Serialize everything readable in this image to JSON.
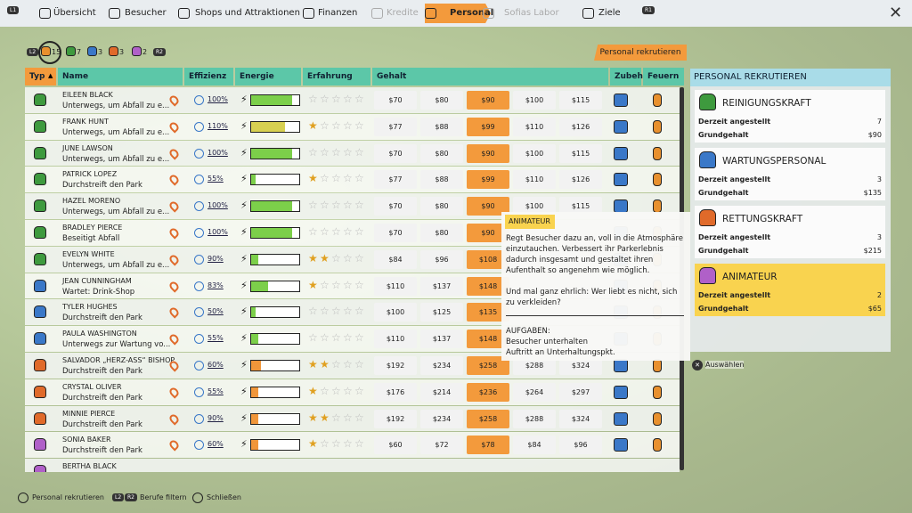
{
  "nav": {
    "left_button": "L1",
    "right_button": "R1",
    "tabs": [
      {
        "label": "Übersicht"
      },
      {
        "label": "Besucher"
      },
      {
        "label": "Shops und Attraktionen"
      },
      {
        "label": "Finanzen"
      },
      {
        "label": "Kredite",
        "disabled": true
      },
      {
        "label": "Personal",
        "active": true
      },
      {
        "label": "Sofias Labor",
        "disabled": true
      },
      {
        "label": "Ziele"
      }
    ]
  },
  "filters": {
    "left_button": "L2",
    "right_button": "R2",
    "counts": [
      "15",
      "7",
      "3",
      "3",
      "2"
    ],
    "colors": [
      "#e8902e",
      "#3e9a3e",
      "#3a78c8",
      "#e06a2a",
      "#b060c8"
    ]
  },
  "recruit_button": "Personal rekrutieren",
  "table": {
    "headers": [
      "Typ",
      "Name",
      "Effizienz",
      "Energie",
      "Erfahrung",
      "Gehalt",
      "Zubehör",
      "Feuern"
    ],
    "rows": [
      {
        "name": "EILEEN BLACK",
        "status": "Unterwegs, um Abfall zu e...",
        "efficiency": "100%",
        "energy": 85,
        "energy_color": "#7ccf4a",
        "stars": 0,
        "salaries": [
          "$70",
          "$80",
          "$90",
          "$100",
          "$115"
        ],
        "selected": 2,
        "color": "#3e9a3e"
      },
      {
        "name": "FRANK HUNT",
        "status": "Unterwegs, um Abfall zu e...",
        "efficiency": "110%",
        "energy": 70,
        "energy_color": "#d8d052",
        "stars": 1,
        "salaries": [
          "$77",
          "$88",
          "$99",
          "$110",
          "$126"
        ],
        "selected": 2,
        "color": "#3e9a3e"
      },
      {
        "name": "JUNE LAWSON",
        "status": "Unterwegs, um Abfall zu e...",
        "efficiency": "100%",
        "energy": 85,
        "energy_color": "#7ccf4a",
        "stars": 0,
        "salaries": [
          "$70",
          "$80",
          "$90",
          "$100",
          "$115"
        ],
        "selected": 2,
        "color": "#3e9a3e"
      },
      {
        "name": "PATRICK LOPEZ",
        "status": "Durchstreift den Park",
        "efficiency": "55%",
        "energy": 10,
        "energy_color": "#7ccf4a",
        "stars": 1,
        "salaries": [
          "$77",
          "$88",
          "$99",
          "$110",
          "$126"
        ],
        "selected": 2,
        "color": "#3e9a3e"
      },
      {
        "name": "HAZEL MORENO",
        "status": "Unterwegs, um Abfall zu e...",
        "efficiency": "100%",
        "energy": 85,
        "energy_color": "#7ccf4a",
        "stars": 0,
        "salaries": [
          "$70",
          "$80",
          "$90",
          "$100",
          "$115"
        ],
        "selected": 2,
        "color": "#3e9a3e"
      },
      {
        "name": "BRADLEY PIERCE",
        "status": "Beseitigt Abfall",
        "efficiency": "100%",
        "energy": 85,
        "energy_color": "#7ccf4a",
        "stars": 0,
        "salaries": [
          "$70",
          "$80",
          "$90"
        ],
        "selected": 2,
        "color": "#3e9a3e"
      },
      {
        "name": "EVELYN WHITE",
        "status": "Unterwegs, um Abfall zu e...",
        "efficiency": "90%",
        "energy": 15,
        "energy_color": "#7ccf4a",
        "stars": 2,
        "salaries": [
          "$84",
          "$96",
          "$108"
        ],
        "selected": 2,
        "color": "#3e9a3e"
      },
      {
        "name": "JEAN CUNNINGHAM",
        "status": "Wartet: Drink-Shop",
        "efficiency": "83%",
        "energy": 35,
        "energy_color": "#7ccf4a",
        "stars": 1,
        "salaries": [
          "$110",
          "$137",
          "$148"
        ],
        "selected": 2,
        "color": "#3a78c8"
      },
      {
        "name": "TYLER HUGHES",
        "status": "Durchstreift den Park",
        "efficiency": "50%",
        "energy": 10,
        "energy_color": "#7ccf4a",
        "stars": 0,
        "salaries": [
          "$100",
          "$125",
          "$135"
        ],
        "selected": 2,
        "color": "#3a78c8"
      },
      {
        "name": "PAULA WASHINGTON",
        "status": "Unterwegs zur Wartung vo...",
        "efficiency": "55%",
        "energy": 15,
        "energy_color": "#7ccf4a",
        "stars": 0,
        "salaries": [
          "$110",
          "$137",
          "$148"
        ],
        "selected": 2,
        "color": "#3a78c8"
      },
      {
        "name": "SALVADOR „HERZ-ASS“ BISHOP",
        "status": "Durchstreift den Park",
        "efficiency": "60%",
        "energy": 20,
        "energy_color": "#f0963a",
        "stars": 2,
        "salaries": [
          "$192",
          "$234",
          "$258",
          "$288",
          "$324"
        ],
        "selected": 2,
        "color": "#e06a2a"
      },
      {
        "name": "CRYSTAL OLIVER",
        "status": "Durchstreift den Park",
        "efficiency": "55%",
        "energy": 15,
        "energy_color": "#f0963a",
        "stars": 1,
        "salaries": [
          "$176",
          "$214",
          "$236",
          "$264",
          "$297"
        ],
        "selected": 2,
        "color": "#e06a2a"
      },
      {
        "name": "MINNIE PIERCE",
        "status": "Durchstreift den Park",
        "efficiency": "90%",
        "energy": 15,
        "energy_color": "#f0963a",
        "stars": 2,
        "salaries": [
          "$192",
          "$234",
          "$258",
          "$288",
          "$324"
        ],
        "selected": 2,
        "color": "#e06a2a"
      },
      {
        "name": "SONIA BAKER",
        "status": "Durchstreift den Park",
        "efficiency": "60%",
        "energy": 15,
        "energy_color": "#f0963a",
        "stars": 1,
        "salaries": [
          "$60",
          "$72",
          "$78",
          "$84",
          "$96"
        ],
        "selected": 2,
        "color": "#b060c8"
      },
      {
        "name": "BERTHA BLACK",
        "color": "#b060c8"
      }
    ]
  },
  "tooltip": {
    "title": "ANIMATEUR",
    "description": "Regt Besucher dazu an, voll in die Atmosphäre einzutauchen. Verbessert ihr Parkerlebnis dadurch insgesamt und gestaltet ihren Aufenthalt so angenehm wie möglich.",
    "quote": "Und mal ganz ehrlich: Wer liebt es nicht, sich zu verkleiden?",
    "tasks_title": "AUFGABEN:",
    "tasks": [
      "Besucher unterhalten",
      "Auftritt an Unterhaltungspkt."
    ]
  },
  "panel": {
    "title": "PERSONAL REKRUTIEREN",
    "cards": [
      {
        "title": "REINIGUNGSKRAFT",
        "employed_label": "Derzeit angestellt",
        "employed": "7",
        "salary_label": "Grundgehalt",
        "salary": "$90",
        "color": "#3e9a3e"
      },
      {
        "title": "WARTUNGSPERSONAL",
        "employed_label": "Derzeit angestellt",
        "employed": "3",
        "salary_label": "Grundgehalt",
        "salary": "$135",
        "color": "#3a78c8"
      },
      {
        "title": "RETTUNGSKRAFT",
        "employed_label": "Derzeit angestellt",
        "employed": "3",
        "salary_label": "Grundgehalt",
        "salary": "$215",
        "color": "#e06a2a"
      },
      {
        "title": "ANIMATEUR",
        "employed_label": "Derzeit angestellt",
        "employed": "2",
        "salary_label": "Grundgehalt",
        "salary": "$65",
        "color": "#b060c8",
        "selected": true
      }
    ],
    "select": "Auswählen"
  },
  "footer": {
    "recruit": "Personal rekrutieren",
    "filter_buttons": [
      "L2",
      "R2"
    ],
    "filter": "Berufe filtern",
    "close": "Schließen"
  }
}
